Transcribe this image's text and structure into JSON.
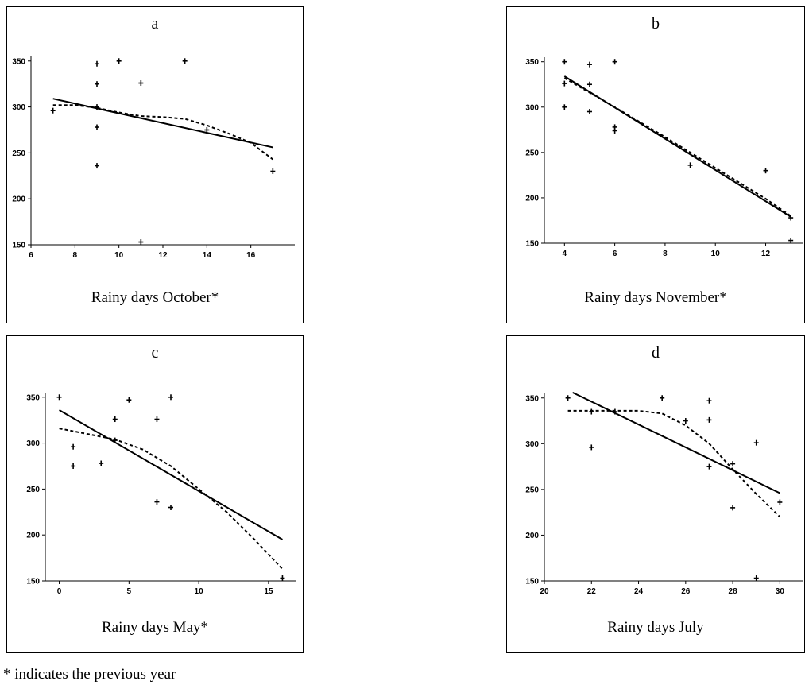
{
  "footnote": "* indicates the previous year",
  "chart_data": [
    {
      "panel": "a",
      "type": "scatter",
      "caption": "Rainy days October*",
      "xlabel": "Rainy days October*",
      "ylabel": "",
      "xlim": [
        6,
        18
      ],
      "ylim": [
        150,
        355
      ],
      "xticks": [
        6,
        8,
        10,
        12,
        14,
        16
      ],
      "yticks": [
        150,
        200,
        250,
        300,
        350
      ],
      "points": [
        [
          7,
          296
        ],
        [
          9,
          347
        ],
        [
          9,
          325
        ],
        [
          9,
          300
        ],
        [
          9,
          278
        ],
        [
          9,
          236
        ],
        [
          10,
          350
        ],
        [
          11,
          326
        ],
        [
          11,
          153
        ],
        [
          13,
          350
        ],
        [
          14,
          275
        ],
        [
          17,
          230
        ]
      ],
      "linear_fit": [
        [
          7,
          309
        ],
        [
          17,
          256
        ]
      ],
      "smooth_fit": [
        [
          7,
          302
        ],
        [
          8,
          302
        ],
        [
          9,
          299
        ],
        [
          10,
          294
        ],
        [
          11,
          290
        ],
        [
          12,
          289
        ],
        [
          13,
          287
        ],
        [
          14,
          280
        ],
        [
          15,
          271
        ],
        [
          16,
          261
        ],
        [
          17,
          243
        ]
      ]
    },
    {
      "panel": "b",
      "type": "scatter",
      "caption": "Rainy days November*",
      "xlabel": "Rainy days November*",
      "ylabel": "",
      "xlim": [
        3.2,
        13.5
      ],
      "ylim": [
        150,
        355
      ],
      "xticks": [
        4,
        6,
        8,
        10,
        12
      ],
      "yticks": [
        150,
        200,
        250,
        300,
        350
      ],
      "points": [
        [
          4,
          350
        ],
        [
          4,
          326
        ],
        [
          4,
          300
        ],
        [
          5,
          347
        ],
        [
          5,
          325
        ],
        [
          5,
          295
        ],
        [
          6,
          350
        ],
        [
          6,
          278
        ],
        [
          6,
          274
        ],
        [
          9,
          236
        ],
        [
          12,
          230
        ],
        [
          13,
          178
        ],
        [
          13,
          153
        ]
      ],
      "linear_fit": [
        [
          4,
          334
        ],
        [
          13,
          179
        ]
      ],
      "smooth_fit": [
        [
          4,
          332
        ],
        [
          6,
          300
        ],
        [
          8,
          267
        ],
        [
          10,
          233
        ],
        [
          12,
          199
        ],
        [
          13,
          180
        ]
      ]
    },
    {
      "panel": "c",
      "type": "scatter",
      "caption": "Rainy days May*",
      "xlabel": "Rainy days May*",
      "ylabel": "",
      "xlim": [
        -1,
        17
      ],
      "ylim": [
        150,
        355
      ],
      "xticks": [
        0,
        5,
        10,
        15
      ],
      "yticks": [
        150,
        200,
        250,
        300,
        350
      ],
      "points": [
        [
          0,
          350
        ],
        [
          1,
          296
        ],
        [
          1,
          275
        ],
        [
          3,
          278
        ],
        [
          4,
          326
        ],
        [
          4,
          303
        ],
        [
          5,
          347
        ],
        [
          7,
          326
        ],
        [
          7,
          236
        ],
        [
          8,
          350
        ],
        [
          8,
          230
        ],
        [
          16,
          153
        ]
      ],
      "linear_fit": [
        [
          0,
          336
        ],
        [
          16,
          195
        ]
      ],
      "smooth_fit": [
        [
          0,
          316
        ],
        [
          2,
          310
        ],
        [
          4,
          304
        ],
        [
          6,
          293
        ],
        [
          8,
          275
        ],
        [
          10,
          250
        ],
        [
          12,
          225
        ],
        [
          14,
          195
        ],
        [
          16,
          163
        ]
      ]
    },
    {
      "panel": "d",
      "type": "scatter",
      "caption": "Rainy days July",
      "xlabel": "Rainy days July",
      "ylabel": "",
      "xlim": [
        20,
        31
      ],
      "ylim": [
        150,
        355
      ],
      "xticks": [
        20,
        22,
        24,
        26,
        28,
        30
      ],
      "yticks": [
        150,
        200,
        250,
        300,
        350
      ],
      "points": [
        [
          21,
          350
        ],
        [
          22,
          335
        ],
        [
          22,
          296
        ],
        [
          23,
          335
        ],
        [
          25,
          350
        ],
        [
          26,
          325
        ],
        [
          27,
          347
        ],
        [
          27,
          326
        ],
        [
          27,
          275
        ],
        [
          28,
          278
        ],
        [
          28,
          230
        ],
        [
          29,
          301
        ],
        [
          29,
          153
        ],
        [
          30,
          236
        ]
      ],
      "linear_fit": [
        [
          21.2,
          356
        ],
        [
          30,
          246
        ]
      ],
      "smooth_fit": [
        [
          21,
          336
        ],
        [
          22,
          336
        ],
        [
          23,
          336
        ],
        [
          24,
          336
        ],
        [
          25,
          333
        ],
        [
          26,
          320
        ],
        [
          27,
          300
        ],
        [
          28,
          272
        ],
        [
          29,
          245
        ],
        [
          30,
          220
        ]
      ]
    }
  ]
}
